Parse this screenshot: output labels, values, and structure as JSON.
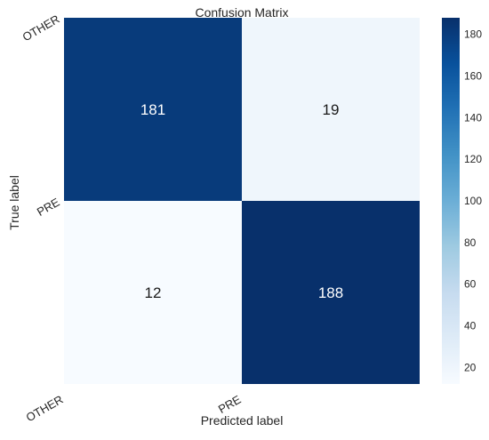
{
  "chart_data": {
    "type": "heatmap",
    "title": "Confusion Matrix",
    "xlabel": "Predicted label",
    "ylabel": "True label",
    "x_categories": [
      "OTHER",
      "PRE"
    ],
    "y_categories": [
      "OTHER",
      "PRE"
    ],
    "values": [
      [
        181,
        19
      ],
      [
        12,
        188
      ]
    ],
    "colorbar": {
      "range": [
        12,
        188
      ],
      "ticks": [
        "20",
        "40",
        "60",
        "80",
        "100",
        "120",
        "140",
        "160",
        "180"
      ],
      "colormap": "Blues"
    },
    "colors": {
      "low": "#f1f7fd",
      "high": "#08306b",
      "dark_text": "#1a1a1a",
      "light_text": "#ffffff"
    }
  }
}
